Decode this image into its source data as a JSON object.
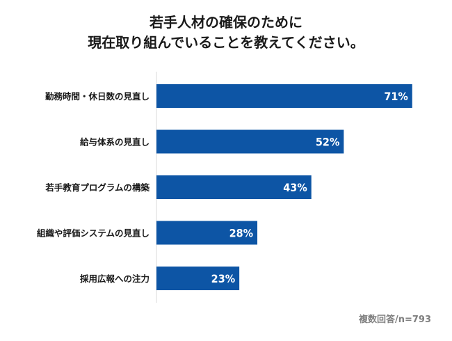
{
  "chart_data": {
    "type": "bar",
    "orientation": "horizontal",
    "title_lines": [
      "若手人材の確保のために",
      "現在取り組んでいることを教えてください。"
    ],
    "categories": [
      "勤務時間・休日数の見直し",
      "給与体系の見直し",
      "若手教育プログラムの構築",
      "組織や評価システムの見直し",
      "採用広報への注力"
    ],
    "values": [
      71,
      52,
      43,
      28,
      23
    ],
    "value_labels": [
      "71%",
      "52%",
      "43%",
      "28%",
      "23%"
    ],
    "unit": "%",
    "xlim": [
      0,
      100
    ],
    "grid": false,
    "legend": "none",
    "bar_color": "#0d55a5",
    "note": "複数回答/n=793"
  }
}
